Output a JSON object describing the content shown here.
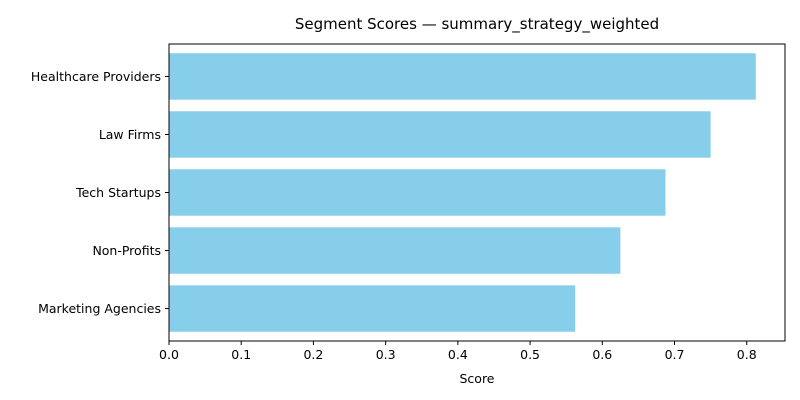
{
  "chart_data": {
    "type": "bar",
    "orientation": "horizontal",
    "title": "Segment Scores — summary_strategy_weighted",
    "xlabel": "Score",
    "ylabel": "",
    "categories": [
      "Healthcare Providers",
      "Law Firms",
      "Tech Startups",
      "Non-Profits",
      "Marketing Agencies"
    ],
    "values": [
      0.8125,
      0.75,
      0.6875,
      0.625,
      0.5625
    ],
    "xlim": [
      0,
      0.853
    ],
    "xticks": [
      "0.0",
      "0.1",
      "0.2",
      "0.3",
      "0.4",
      "0.5",
      "0.6",
      "0.7",
      "0.8"
    ],
    "grid": false,
    "legend": "none",
    "bar_color": "#87CEEB"
  }
}
